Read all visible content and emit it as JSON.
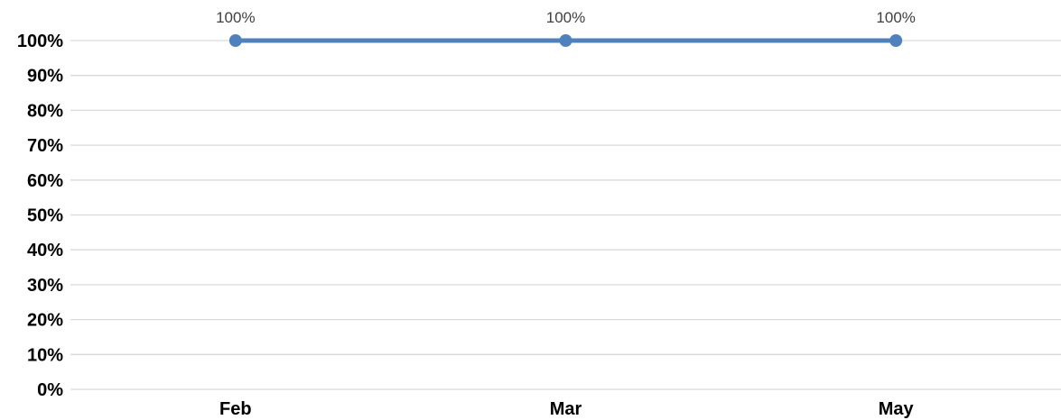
{
  "chart_data": {
    "type": "line",
    "title": "",
    "xlabel": "",
    "ylabel": "",
    "categories": [
      "Feb",
      "Mar",
      "May"
    ],
    "series": [
      {
        "values": [
          100,
          100,
          100
        ],
        "data_labels": [
          "100%",
          "100%",
          "100%"
        ],
        "color": "#4f81bd",
        "marker": "circle"
      }
    ],
    "ylim": [
      0,
      100
    ],
    "y_ticks": [
      0,
      10,
      20,
      30,
      40,
      50,
      60,
      70,
      80,
      90,
      100
    ],
    "y_tick_labels": [
      "0%",
      "10%",
      "20%",
      "30%",
      "40%",
      "50%",
      "60%",
      "70%",
      "80%",
      "90%",
      "100%"
    ],
    "grid": true,
    "legend": "none",
    "colors": {
      "line": "#4f81bd",
      "grid": "#d9d9d9",
      "text": "#000000",
      "data_label": "#404040"
    }
  }
}
